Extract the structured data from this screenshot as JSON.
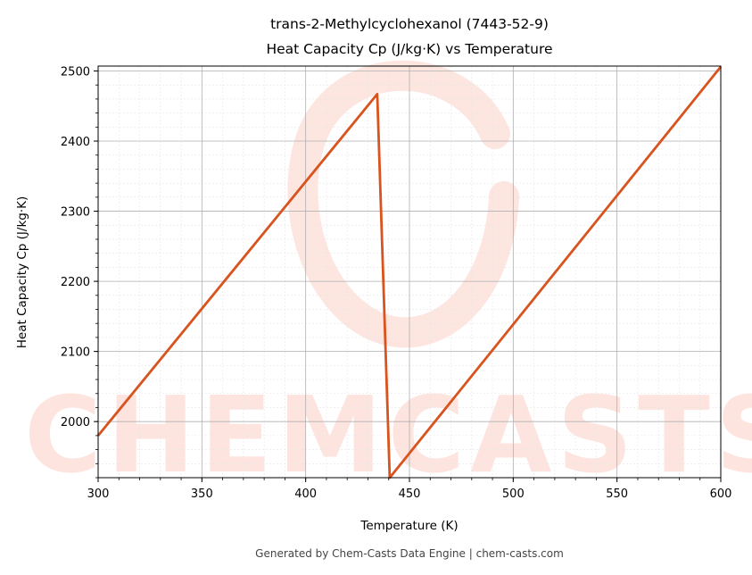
{
  "chart_data": {
    "type": "line",
    "title": "trans-2-Methylcyclohexanol (7443-52-9)",
    "subtitle": "Heat Capacity Cp (J/kg·K) vs Temperature",
    "xlabel": "Temperature (K)",
    "ylabel": "Heat Capacity Cp (J/kg·K)",
    "xlim": [
      300,
      600
    ],
    "ylim": [
      1920,
      2507
    ],
    "xticks": [
      300,
      350,
      400,
      450,
      500,
      550,
      600
    ],
    "yticks": [
      2000,
      2100,
      2200,
      2300,
      2400,
      2500
    ],
    "grid": true,
    "series": [
      {
        "x": [
          300,
          434.5,
          440.5,
          600
        ],
        "y": [
          1980,
          2467,
          1920,
          2506
        ]
      }
    ]
  },
  "watermark": "CHEMCASTS",
  "footer": "Generated by Chem-Casts Data Engine | chem-casts.com",
  "colors": {
    "line": "#d9531e",
    "watermark": "#fde0da",
    "grid_major": "#b0b0b0",
    "grid_minor": "#e6e6e6",
    "footer_text": "#444444"
  }
}
